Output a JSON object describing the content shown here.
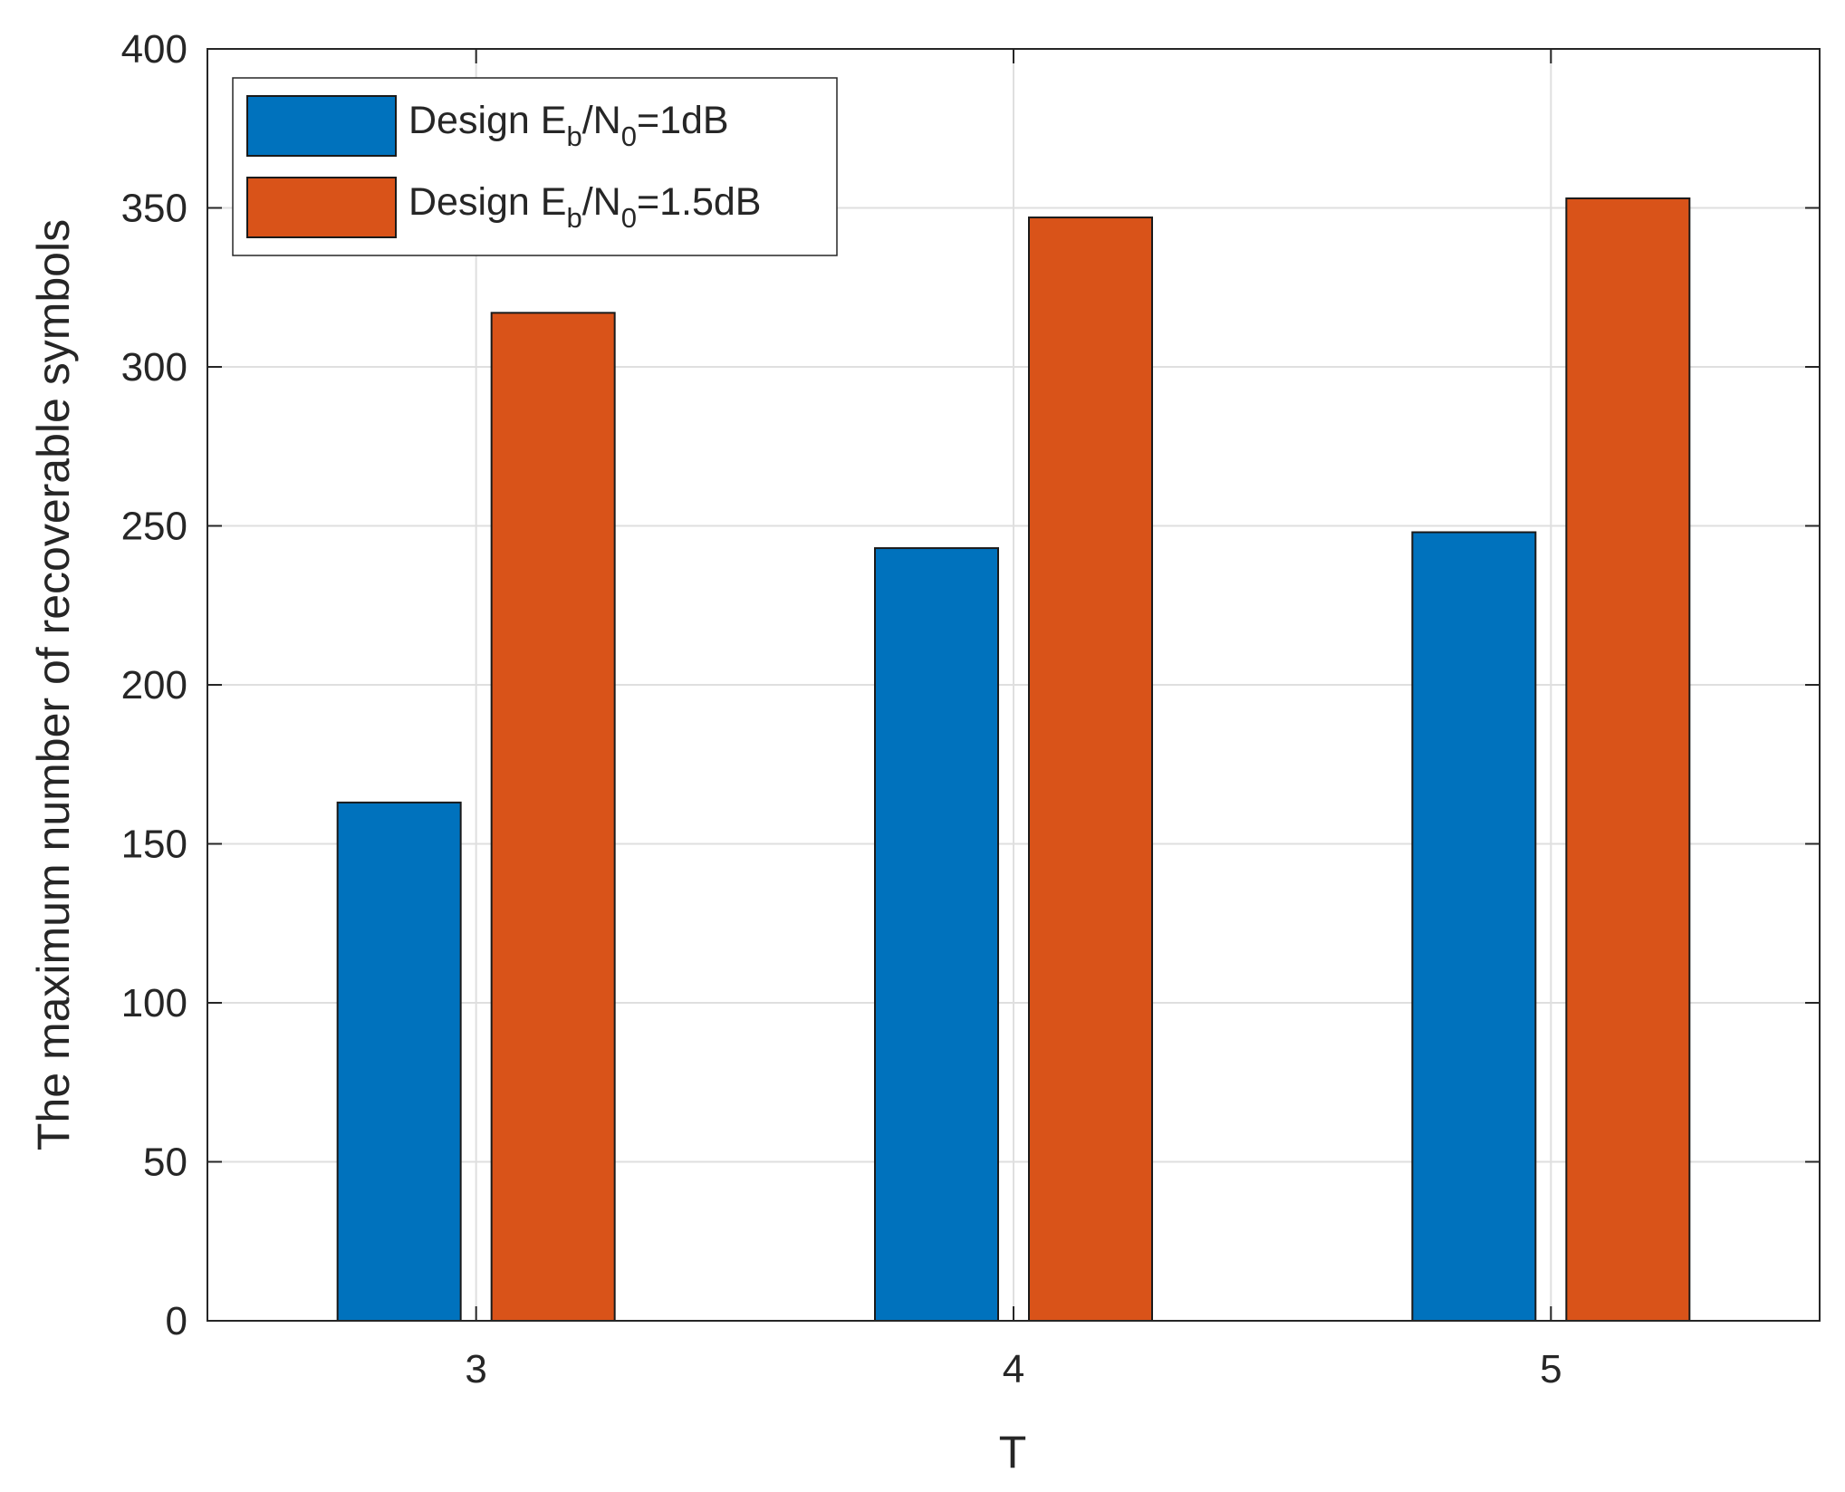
{
  "chart_data": {
    "type": "bar",
    "title": "",
    "xlabel": "T",
    "ylabel": "The maximum number of recoverable symbols",
    "categories": [
      "3",
      "4",
      "5"
    ],
    "series": [
      {
        "name": "Design E_b/N_0=1dB",
        "legend": {
          "base": "Design E",
          "sub1": "b",
          "mid": "/N",
          "sub2": "0",
          "tail": "=1dB"
        },
        "color": "#0072BD",
        "values": [
          163,
          243,
          248
        ]
      },
      {
        "name": "Design E_b/N_0=1.5dB",
        "legend": {
          "base": "Design E",
          "sub1": "b",
          "mid": "/N",
          "sub2": "0",
          "tail": "=1.5dB"
        },
        "color": "#D95319",
        "values": [
          317,
          347,
          353
        ]
      }
    ],
    "ylim": [
      0,
      400
    ],
    "yticks": [
      0,
      50,
      100,
      150,
      200,
      250,
      300,
      350,
      400
    ],
    "grid": true,
    "legend_position": "top-left"
  }
}
